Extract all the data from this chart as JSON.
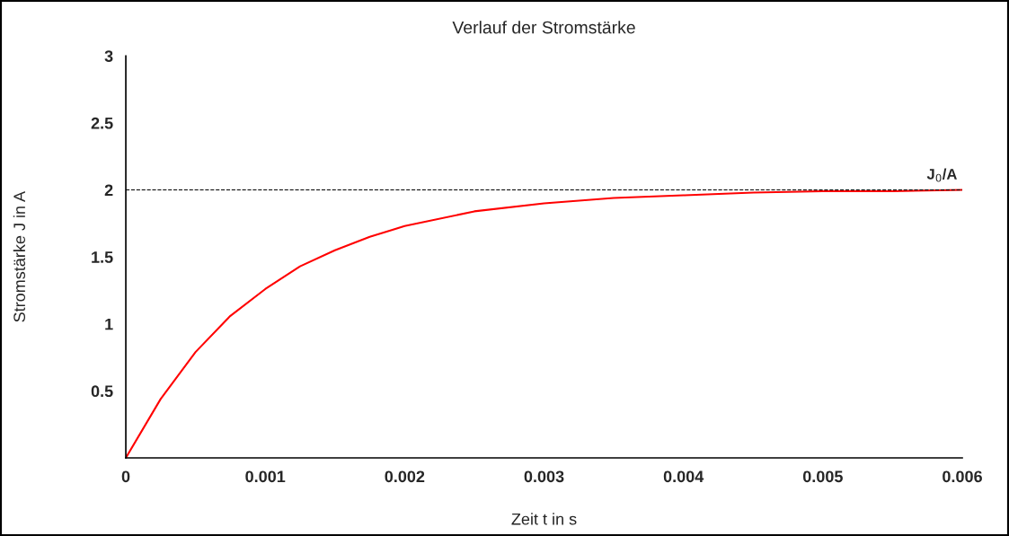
{
  "chart_data": {
    "type": "line",
    "title": "Verlauf der Stromstärke",
    "xlabel": "Zeit t in s",
    "ylabel": "Stromstärke J in A",
    "x": [
      0,
      0.00025,
      0.0005,
      0.00075,
      0.001,
      0.00125,
      0.0015,
      0.00175,
      0.002,
      0.0025,
      0.003,
      0.0035,
      0.004,
      0.0045,
      0.005,
      0.0055,
      0.006
    ],
    "series": [
      {
        "color": "#ff0000",
        "values": [
          0,
          0.44,
          0.79,
          1.06,
          1.26,
          1.43,
          1.55,
          1.65,
          1.73,
          1.84,
          1.9,
          1.94,
          1.96,
          1.98,
          1.99,
          1.99,
          2.0
        ]
      }
    ],
    "xlim": [
      0,
      0.006
    ],
    "ylim": [
      0,
      3
    ],
    "xticks": [
      0,
      0.001,
      0.002,
      0.003,
      0.004,
      0.005,
      0.006
    ],
    "yticks": [
      0.5,
      1,
      1.5,
      2,
      2.5,
      3
    ],
    "ref_lines": [
      {
        "axis": "y",
        "value": 2,
        "label": "J$_{0}$/A",
        "color": "#000000",
        "line_style": "dashed"
      }
    ],
    "grid": false,
    "legend": false,
    "marker": "none",
    "line_style": "solid"
  }
}
